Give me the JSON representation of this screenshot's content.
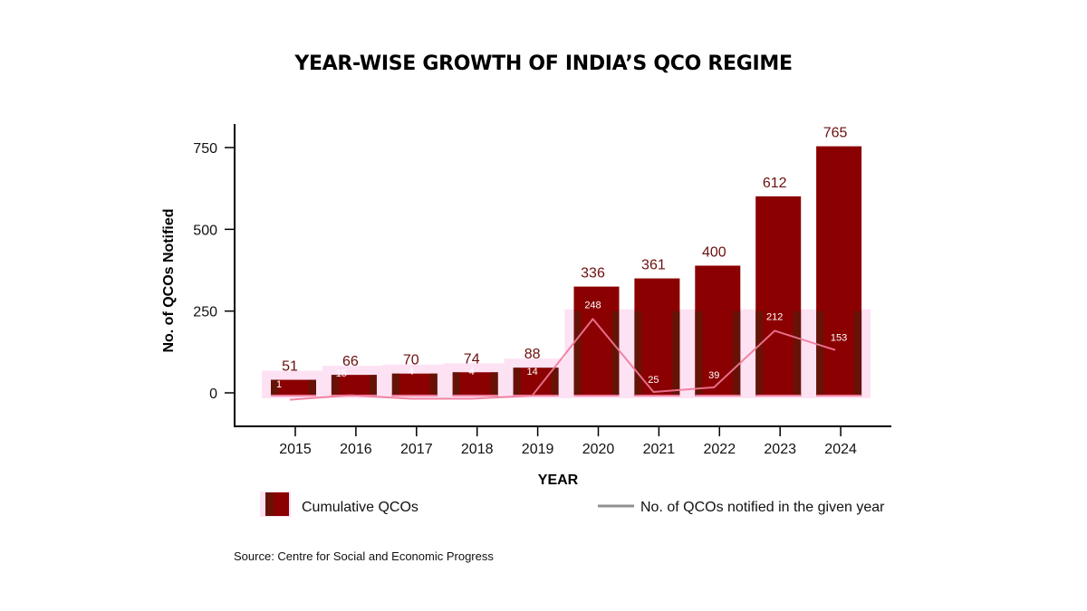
{
  "chart_data": {
    "type": "bar",
    "title": "YEAR-WISE GROWTH OF INDIA’S QCO REGIME",
    "xlabel": "YEAR",
    "ylabel": "No. of QCOs Notified",
    "ylim": [
      0,
      800
    ],
    "yticks": [
      0,
      250,
      500,
      750
    ],
    "categories": [
      "2015",
      "2016",
      "2017",
      "2018",
      "2019",
      "2020",
      "2021",
      "2022",
      "2023",
      "2024"
    ],
    "series": [
      {
        "name": "Cumulative QCOs",
        "kind": "bar",
        "color": "#8b0000",
        "edge_color": "#5a1a0a",
        "values": [
          51,
          66,
          70,
          74,
          88,
          336,
          361,
          400,
          612,
          765
        ]
      },
      {
        "name": "No. of QCOs notified in the given year",
        "kind": "line",
        "color": "#f07a9a",
        "legend_color": "#909090",
        "values": [
          1,
          15,
          4,
          4,
          14,
          248,
          25,
          39,
          212,
          153
        ]
      }
    ],
    "legend": {
      "placement": "bottom",
      "items": [
        "Cumulative QCOs",
        "No. of QCOs notified in the given year"
      ]
    },
    "grid": false,
    "source": "Source: Centre for Social and Economic Progress"
  }
}
